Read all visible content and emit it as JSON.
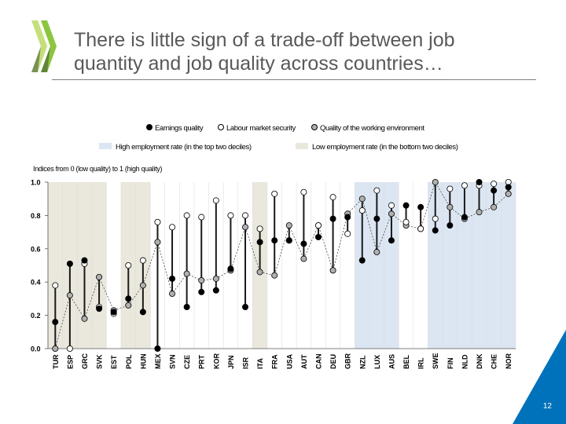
{
  "slide": {
    "title_line1": "There is little sign of a trade-off between job",
    "title_line2": "quantity and job quality across countries…",
    "page_number": "12",
    "logo": "OECD chevron logo",
    "colors": {
      "logo_green": "#8cc63f",
      "logo_green_light": "#c5df7a",
      "logo_dark": "#3d4e36",
      "corner_blue": "#0072bc",
      "title_text": "#595959"
    }
  },
  "chart_data": {
    "type": "scatter",
    "legend": {
      "earnings": "Earnings quality",
      "security": "Labour market security",
      "environment": "Quality of the working environment",
      "high_employment": "High employment rate (in the top two deciles)",
      "low_employment": "Low employment rate (in the bottom two deciles)"
    },
    "ylabel": "Indices from 0 (low quality) to 1 (high quality)",
    "ylim": [
      0,
      1
    ],
    "yticks": [
      "0.0",
      "0.2",
      "0.4",
      "0.6",
      "0.8",
      "1.0"
    ],
    "ytick_values": [
      0,
      0.2,
      0.4,
      0.6,
      0.8,
      1.0
    ],
    "colors": {
      "earnings": "#000000",
      "security": "#ffffff",
      "environment": "#b0b0b0",
      "high_band": "#dce6f2",
      "low_band": "#eae8dd",
      "line": "#1a1a1a"
    },
    "categories": [
      "TUR",
      "ESP",
      "GRC",
      "SVK",
      "EST",
      "POL",
      "HUN",
      "MEX",
      "SVN",
      "CZE",
      "PRT",
      "KOR",
      "JPN",
      "ISR",
      "ITA",
      "FRA",
      "USA",
      "AUT",
      "CAN",
      "DEU",
      "GBR",
      "NZL",
      "LUX",
      "AUS",
      "BEL",
      "IRL",
      "SWE",
      "FIN",
      "NLD",
      "DNK",
      "CHE",
      "NOR"
    ],
    "employment_band": [
      "low",
      "low",
      "low",
      "low",
      "none",
      "low",
      "low",
      "none",
      "none",
      "none",
      "none",
      "none",
      "none",
      "none",
      "low",
      "none",
      "none",
      "none",
      "none",
      "none",
      "none",
      "high",
      "high",
      "high",
      "none",
      "none",
      "high",
      "high",
      "high",
      "high",
      "high",
      "high"
    ],
    "series": [
      {
        "name": "Earnings quality",
        "key": "earnings",
        "values": [
          0.16,
          0.51,
          0.53,
          0.24,
          0.22,
          0.3,
          0.22,
          0.0,
          0.42,
          0.25,
          0.34,
          0.35,
          0.48,
          0.25,
          0.64,
          0.65,
          0.65,
          0.63,
          0.67,
          0.78,
          0.79,
          0.53,
          0.78,
          0.65,
          0.86,
          0.85,
          0.71,
          0.74,
          0.79,
          1.0,
          0.95,
          0.97
        ]
      },
      {
        "name": "Labour market security",
        "key": "security",
        "values": [
          0.38,
          0.0,
          0.51,
          0.25,
          0.21,
          0.5,
          0.53,
          0.76,
          0.73,
          0.8,
          0.79,
          0.89,
          0.8,
          0.8,
          0.72,
          0.93,
          0.65,
          0.94,
          0.74,
          0.91,
          0.69,
          0.83,
          0.95,
          0.86,
          0.76,
          0.72,
          0.78,
          0.96,
          0.98,
          0.98,
          0.99,
          1.0
        ]
      },
      {
        "name": "Quality of the working environment",
        "key": "environment",
        "values": [
          0.0,
          0.32,
          0.18,
          0.43,
          0.23,
          0.26,
          0.38,
          0.64,
          0.33,
          0.45,
          0.41,
          0.42,
          0.47,
          0.73,
          0.46,
          0.44,
          0.74,
          0.54,
          0.74,
          0.47,
          0.81,
          0.9,
          0.58,
          0.81,
          0.74,
          0.72,
          1.0,
          0.85,
          0.78,
          0.82,
          0.85,
          0.93
        ]
      }
    ]
  }
}
